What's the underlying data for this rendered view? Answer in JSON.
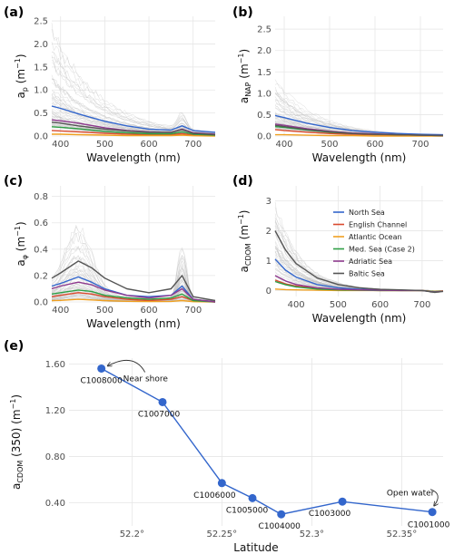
{
  "chart_data": [
    {
      "panel": "(a)",
      "type": "line",
      "xlabel": "Wavelength (nm)",
      "ylabel": {
        "main": "a",
        "sub": "p",
        "unit": "(m",
        "sup": "−1",
        "close": ")"
      },
      "xlim": [
        380,
        750
      ],
      "ylim": [
        0,
        2.6
      ],
      "xticks": [
        400,
        500,
        600,
        700
      ],
      "yticks": [
        0.0,
        0.5,
        1.0,
        1.5,
        2.0,
        2.5
      ],
      "ytick_labels": [
        "0.0",
        "0.5",
        "1.0",
        "1.5",
        "2.0",
        "2.5"
      ],
      "background_samples": {
        "color": "#bfbfbf",
        "peak_values": [
          2.4,
          2.0,
          1.6,
          1.3,
          1.1,
          0.95,
          0.85,
          0.7,
          0.6,
          0.5,
          0.45,
          0.4,
          0.35,
          0.3,
          0.25
        ]
      },
      "series": [
        {
          "name": "North Sea",
          "color": "#3366cc",
          "x": [
            380,
            400,
            440,
            500,
            550,
            600,
            650,
            675,
            700,
            750
          ],
          "values": [
            0.65,
            0.6,
            0.48,
            0.32,
            0.22,
            0.15,
            0.13,
            0.22,
            0.12,
            0.08
          ]
        },
        {
          "name": "English Channel",
          "color": "#d94a2e",
          "x": [
            380,
            400,
            440,
            500,
            550,
            600,
            650,
            675,
            700,
            750
          ],
          "values": [
            0.12,
            0.11,
            0.09,
            0.06,
            0.04,
            0.03,
            0.03,
            0.05,
            0.02,
            0.01
          ]
        },
        {
          "name": "Atlantic Ocean",
          "color": "#f0a020",
          "x": [
            380,
            400,
            440,
            500,
            550,
            600,
            650,
            675,
            700,
            750
          ],
          "values": [
            0.04,
            0.04,
            0.03,
            0.02,
            0.01,
            0.01,
            0.01,
            0.02,
            0.005,
            0.0
          ]
        },
        {
          "name": "Med. Sea (Case 2)",
          "color": "#2e9e44",
          "x": [
            380,
            400,
            440,
            500,
            550,
            600,
            650,
            675,
            700,
            750
          ],
          "values": [
            0.2,
            0.19,
            0.16,
            0.1,
            0.07,
            0.05,
            0.05,
            0.09,
            0.04,
            0.02
          ]
        },
        {
          "name": "Adriatic Sea",
          "color": "#8e3a8e",
          "x": [
            380,
            400,
            440,
            500,
            550,
            600,
            650,
            675,
            700,
            750
          ],
          "values": [
            0.35,
            0.33,
            0.28,
            0.18,
            0.12,
            0.09,
            0.08,
            0.15,
            0.07,
            0.04
          ]
        },
        {
          "name": "Baltic Sea",
          "color": "#555555",
          "x": [
            380,
            400,
            440,
            500,
            550,
            600,
            650,
            675,
            700,
            750
          ],
          "values": [
            0.3,
            0.28,
            0.22,
            0.15,
            0.11,
            0.08,
            0.08,
            0.14,
            0.06,
            0.03
          ]
        }
      ]
    },
    {
      "panel": "(b)",
      "type": "line",
      "xlabel": "Wavelength (nm)",
      "ylabel": {
        "main": "a",
        "sub": "NAP",
        "unit": "(m",
        "sup": "−1",
        "close": ")"
      },
      "xlim": [
        380,
        750
      ],
      "ylim": [
        0,
        2.8
      ],
      "xticks": [
        400,
        500,
        600,
        700
      ],
      "yticks": [
        0.0,
        0.5,
        1.0,
        1.5,
        2.0,
        2.5
      ],
      "ytick_labels": [
        "0.0",
        "0.5",
        "1.0",
        "1.5",
        "2.0",
        "2.5"
      ],
      "background_samples": {
        "color": "#bfbfbf",
        "peak_values": [
          1.4,
          1.2,
          1.0,
          0.85,
          0.7,
          0.6,
          0.5,
          0.45,
          0.4,
          0.35,
          0.3,
          0.25,
          0.2
        ]
      },
      "series": [
        {
          "name": "North Sea",
          "color": "#3366cc",
          "x": [
            380,
            400,
            450,
            500,
            550,
            600,
            650,
            700,
            750
          ],
          "values": [
            0.48,
            0.43,
            0.3,
            0.2,
            0.13,
            0.09,
            0.06,
            0.04,
            0.03
          ]
        },
        {
          "name": "English Channel",
          "color": "#d94a2e",
          "x": [
            380,
            400,
            450,
            500,
            550,
            600,
            650,
            700,
            750
          ],
          "values": [
            0.15,
            0.13,
            0.09,
            0.06,
            0.04,
            0.03,
            0.02,
            0.01,
            0.01
          ]
        },
        {
          "name": "Atlantic Ocean",
          "color": "#f0a020",
          "x": [
            380,
            400,
            450,
            500,
            550,
            600,
            650,
            700,
            750
          ],
          "values": [
            0.03,
            0.03,
            0.02,
            0.01,
            0.01,
            0.0,
            0.0,
            0.0,
            0.0
          ]
        },
        {
          "name": "Med. Sea (Case 2)",
          "color": "#2e9e44",
          "x": [
            380,
            400,
            450,
            500,
            550,
            600,
            650,
            700,
            750
          ],
          "values": [
            0.22,
            0.2,
            0.14,
            0.09,
            0.06,
            0.04,
            0.03,
            0.02,
            0.01
          ]
        },
        {
          "name": "Adriatic Sea",
          "color": "#8e3a8e",
          "x": [
            380,
            400,
            450,
            500,
            550,
            600,
            650,
            700,
            750
          ],
          "values": [
            0.28,
            0.25,
            0.17,
            0.11,
            0.07,
            0.05,
            0.03,
            0.02,
            0.01
          ]
        },
        {
          "name": "Baltic Sea",
          "color": "#555555",
          "x": [
            380,
            400,
            450,
            500,
            550,
            600,
            650,
            700,
            750
          ],
          "values": [
            0.25,
            0.22,
            0.15,
            0.1,
            0.06,
            0.04,
            0.03,
            0.02,
            0.01
          ]
        }
      ]
    },
    {
      "panel": "(c)",
      "type": "line",
      "xlabel": "Wavelength (nm)",
      "ylabel": {
        "main": "a",
        "sub": "φ",
        "unit": "(m",
        "sup": "−1",
        "close": ")"
      },
      "xlim": [
        380,
        750
      ],
      "ylim": [
        0,
        0.88
      ],
      "xticks": [
        400,
        500,
        600,
        700
      ],
      "yticks": [
        0.0,
        0.2,
        0.4,
        0.6,
        0.8
      ],
      "ytick_labels": [
        "0.0",
        "0.2",
        "0.4",
        "0.6",
        "0.8"
      ],
      "background_samples": {
        "color": "#bfbfbf",
        "peak_values": [
          0.82,
          0.6,
          0.5,
          0.42,
          0.36,
          0.3,
          0.26,
          0.22,
          0.18,
          0.15,
          0.12,
          0.1,
          0.08,
          0.06,
          0.04
        ]
      },
      "series": [
        {
          "name": "North Sea",
          "color": "#3366cc",
          "x": [
            380,
            400,
            440,
            470,
            500,
            550,
            600,
            650,
            675,
            700,
            750
          ],
          "values": [
            0.12,
            0.14,
            0.19,
            0.15,
            0.1,
            0.05,
            0.04,
            0.05,
            0.12,
            0.02,
            0.0
          ]
        },
        {
          "name": "English Channel",
          "color": "#d94a2e",
          "x": [
            380,
            400,
            440,
            470,
            500,
            550,
            600,
            650,
            675,
            700,
            750
          ],
          "values": [
            0.04,
            0.05,
            0.07,
            0.06,
            0.04,
            0.02,
            0.01,
            0.02,
            0.04,
            0.01,
            0.0
          ]
        },
        {
          "name": "Atlantic Ocean",
          "color": "#f0a020",
          "x": [
            380,
            400,
            440,
            470,
            500,
            550,
            600,
            650,
            675,
            700,
            750
          ],
          "values": [
            0.01,
            0.012,
            0.02,
            0.015,
            0.01,
            0.005,
            0.003,
            0.004,
            0.01,
            0.002,
            0.0
          ]
        },
        {
          "name": "Med. Sea (Case 2)",
          "color": "#2e9e44",
          "x": [
            380,
            400,
            440,
            470,
            500,
            550,
            600,
            650,
            675,
            700,
            750
          ],
          "values": [
            0.06,
            0.07,
            0.09,
            0.08,
            0.05,
            0.03,
            0.02,
            0.03,
            0.06,
            0.01,
            0.0
          ]
        },
        {
          "name": "Adriatic Sea",
          "color": "#8e3a8e",
          "x": [
            380,
            400,
            440,
            470,
            500,
            550,
            600,
            650,
            675,
            700,
            750
          ],
          "values": [
            0.1,
            0.12,
            0.15,
            0.13,
            0.09,
            0.05,
            0.03,
            0.05,
            0.1,
            0.02,
            0.0
          ]
        },
        {
          "name": "Baltic Sea",
          "color": "#555555",
          "x": [
            380,
            400,
            440,
            470,
            500,
            550,
            600,
            650,
            675,
            700,
            750
          ],
          "values": [
            0.18,
            0.22,
            0.31,
            0.26,
            0.18,
            0.1,
            0.07,
            0.1,
            0.2,
            0.04,
            0.01
          ]
        }
      ]
    },
    {
      "panel": "(d)",
      "type": "line",
      "xlabel": "Wavelength (nm)",
      "ylabel": {
        "main": "a",
        "sub": "CDOM",
        "unit": "(m",
        "sup": "−1",
        "close": ")"
      },
      "xlim": [
        350,
        750
      ],
      "ylim": [
        -0.2,
        3.5
      ],
      "xticks": [
        400,
        500,
        600,
        700
      ],
      "yticks": [
        0,
        1,
        2,
        3
      ],
      "ytick_labels": [
        "0",
        "1",
        "2",
        "3"
      ],
      "background_samples": {
        "color": "#bfbfbf",
        "peak_values": [
          3.3,
          2.7,
          2.3,
          2.0,
          1.8,
          1.6,
          1.4,
          1.2,
          1.0,
          0.8,
          0.6,
          0.4
        ]
      },
      "legend": {
        "position": "top-right"
      },
      "series": [
        {
          "name": "North Sea",
          "color": "#3366cc",
          "x": [
            350,
            375,
            400,
            450,
            500,
            550,
            600,
            650,
            700,
            730,
            750
          ],
          "values": [
            1.05,
            0.68,
            0.45,
            0.2,
            0.09,
            0.04,
            0.02,
            0.01,
            0.0,
            -0.05,
            -0.02
          ]
        },
        {
          "name": "English Channel",
          "color": "#d94a2e",
          "x": [
            350,
            375,
            400,
            450,
            500,
            550,
            600,
            650,
            700,
            730,
            750
          ],
          "values": [
            0.35,
            0.22,
            0.15,
            0.07,
            0.03,
            0.01,
            0.0,
            0.0,
            0.0,
            -0.04,
            -0.02
          ]
        },
        {
          "name": "Atlantic Ocean",
          "color": "#f0a020",
          "x": [
            350,
            375,
            400,
            450,
            500,
            550,
            600,
            650,
            700,
            730,
            750
          ],
          "values": [
            0.05,
            0.03,
            0.02,
            0.01,
            0.0,
            0.0,
            0.0,
            0.0,
            0.0,
            -0.03,
            -0.01
          ]
        },
        {
          "name": "Med. Sea (Case 2)",
          "color": "#2e9e44",
          "x": [
            350,
            375,
            400,
            450,
            500,
            550,
            600,
            650,
            700,
            730,
            750
          ],
          "values": [
            0.3,
            0.19,
            0.12,
            0.05,
            0.02,
            0.01,
            0.0,
            0.0,
            0.0,
            -0.04,
            -0.02
          ]
        },
        {
          "name": "Adriatic Sea",
          "color": "#8e3a8e",
          "x": [
            350,
            375,
            400,
            450,
            500,
            550,
            600,
            650,
            700,
            730,
            750
          ],
          "values": [
            0.5,
            0.32,
            0.2,
            0.09,
            0.04,
            0.02,
            0.01,
            0.0,
            0.0,
            -0.05,
            -0.02
          ]
        },
        {
          "name": "Baltic Sea",
          "color": "#555555",
          "x": [
            350,
            375,
            400,
            450,
            500,
            550,
            600,
            650,
            700,
            730,
            750
          ],
          "values": [
            2.0,
            1.35,
            0.9,
            0.42,
            0.2,
            0.09,
            0.04,
            0.02,
            0.0,
            -0.06,
            -0.03
          ]
        }
      ]
    },
    {
      "panel": "(e)",
      "type": "line",
      "xlabel": "Latitude",
      "ylabel": {
        "main": "a",
        "sub": "CDOM",
        "unit": "(350) (m",
        "sup": "−1",
        "close": ")"
      },
      "xlim": [
        52.165,
        52.373
      ],
      "ylim": [
        0.2,
        1.65
      ],
      "xticks": [
        52.2,
        52.25,
        52.3,
        52.35
      ],
      "xtick_labels": [
        "52.2°",
        "52.25°",
        "52.3°",
        "52.35°"
      ],
      "yticks": [
        0.4,
        0.8,
        1.2,
        1.6
      ],
      "ytick_labels": [
        "0.40",
        "0.80",
        "1.20",
        "1.60"
      ],
      "color": "#3366cc",
      "points": [
        {
          "label": "C1008000",
          "x": 52.183,
          "y": 1.56
        },
        {
          "label": "C1007000",
          "x": 52.217,
          "y": 1.27
        },
        {
          "label": "C1006000",
          "x": 52.25,
          "y": 0.57
        },
        {
          "label": "C1005000",
          "x": 52.267,
          "y": 0.44
        },
        {
          "label": "C1004000",
          "x": 52.283,
          "y": 0.3
        },
        {
          "label": "C1003000",
          "x": 52.317,
          "y": 0.41
        },
        {
          "label": "C1001000",
          "x": 52.367,
          "y": 0.32
        }
      ],
      "annotations": [
        {
          "text": "Near shore",
          "target": "C1008000"
        },
        {
          "text": "Open water",
          "target": "C1001000"
        }
      ]
    }
  ]
}
